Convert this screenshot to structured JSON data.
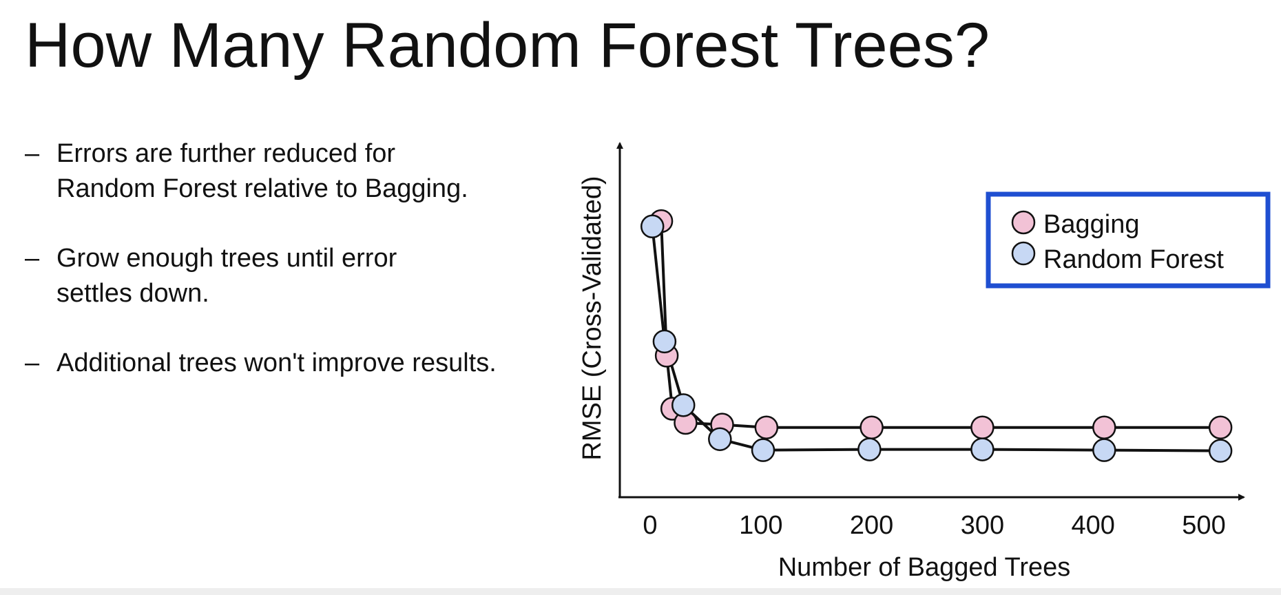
{
  "slide": {
    "title": "How Many Random Forest Trees?",
    "bullets": [
      {
        "marker": "–",
        "lines": [
          "Errors are further reduced for",
          "Random Forest relative to Bagging."
        ]
      },
      {
        "marker": "–",
        "lines": [
          "Grow enough trees until error",
          "settles down."
        ]
      },
      {
        "marker": "–",
        "lines": [
          "Additional trees won't improve results."
        ]
      }
    ]
  },
  "chart_data": {
    "type": "line",
    "title": "",
    "xlabel": "Number of Bagged Trees",
    "ylabel": "RMSE (Cross-Validated)",
    "xlim": [
      -30,
      545
    ],
    "ylim": [
      0,
      1
    ],
    "x_ticks": [
      0,
      100,
      200,
      300,
      400,
      500
    ],
    "y_ticks_shown": false,
    "grid": false,
    "legend": {
      "position": "top-right",
      "border_color": "#1f4fd1"
    },
    "series": [
      {
        "name": "Bagging",
        "color": "#f2c2d6",
        "points": [
          {
            "x": 10,
            "y": 0.78
          },
          {
            "x": 15,
            "y": 0.4
          },
          {
            "x": 20,
            "y": 0.25
          },
          {
            "x": 32,
            "y": 0.21
          },
          {
            "x": 65,
            "y": 0.205
          },
          {
            "x": 105,
            "y": 0.197
          },
          {
            "x": 200,
            "y": 0.197
          },
          {
            "x": 300,
            "y": 0.197
          },
          {
            "x": 410,
            "y": 0.197
          },
          {
            "x": 515,
            "y": 0.197
          }
        ]
      },
      {
        "name": "Random Forest",
        "color": "#c7d8f4",
        "points": [
          {
            "x": 2,
            "y": 0.765
          },
          {
            "x": 13,
            "y": 0.44
          },
          {
            "x": 30,
            "y": 0.26
          },
          {
            "x": 63,
            "y": 0.164
          },
          {
            "x": 102,
            "y": 0.133
          },
          {
            "x": 198,
            "y": 0.135
          },
          {
            "x": 300,
            "y": 0.135
          },
          {
            "x": 410,
            "y": 0.133
          },
          {
            "x": 515,
            "y": 0.131
          }
        ]
      }
    ],
    "marker_stroke": "#111111",
    "line_color": "#111111"
  }
}
